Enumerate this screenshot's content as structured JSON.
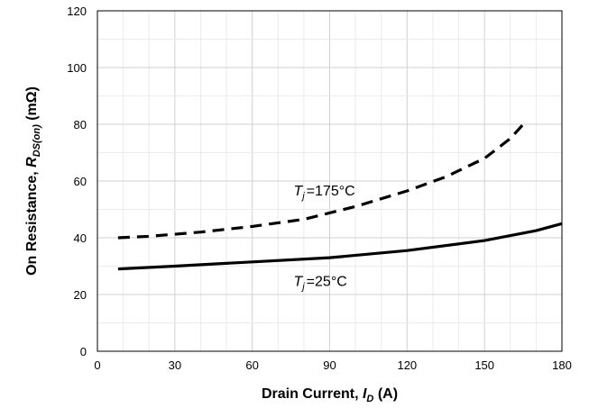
{
  "chart_data": {
    "type": "line",
    "title": "",
    "xlabel": {
      "main": "Drain Current, ",
      "sym": "I",
      "sub": "D",
      "tail": " (A)"
    },
    "ylabel": {
      "main": "On Resistance, ",
      "sym": "R",
      "sub": "DS(on)",
      "tail": " (mΩ)"
    },
    "xlim": [
      0,
      180
    ],
    "ylim": [
      0,
      120
    ],
    "xticks": [
      0,
      30,
      60,
      90,
      120,
      150,
      180
    ],
    "yticks": [
      0,
      20,
      40,
      60,
      80,
      100,
      120
    ],
    "x_minor_step": 10,
    "y_minor_step": 10,
    "grid": true,
    "legend": "none",
    "series": [
      {
        "style": "dashed",
        "color": "#000000",
        "x": [
          8,
          20,
          40,
          60,
          80,
          100,
          120,
          135,
          150,
          160,
          165
        ],
        "y": [
          40,
          40.5,
          42,
          44,
          46.5,
          51,
          56.5,
          61.5,
          68,
          75,
          80
        ]
      },
      {
        "style": "solid",
        "color": "#000000",
        "x": [
          8,
          30,
          60,
          90,
          120,
          150,
          170,
          180
        ],
        "y": [
          29,
          30,
          31.5,
          33,
          35.5,
          39,
          42.5,
          45
        ]
      }
    ],
    "annotations": [
      {
        "sym": "T",
        "sub": "j",
        "rest": "=175°C",
        "x": 76,
        "y": 55
      },
      {
        "sym": "T",
        "sub": "j",
        "rest": "=25°C",
        "x": 76,
        "y": 23
      }
    ]
  }
}
